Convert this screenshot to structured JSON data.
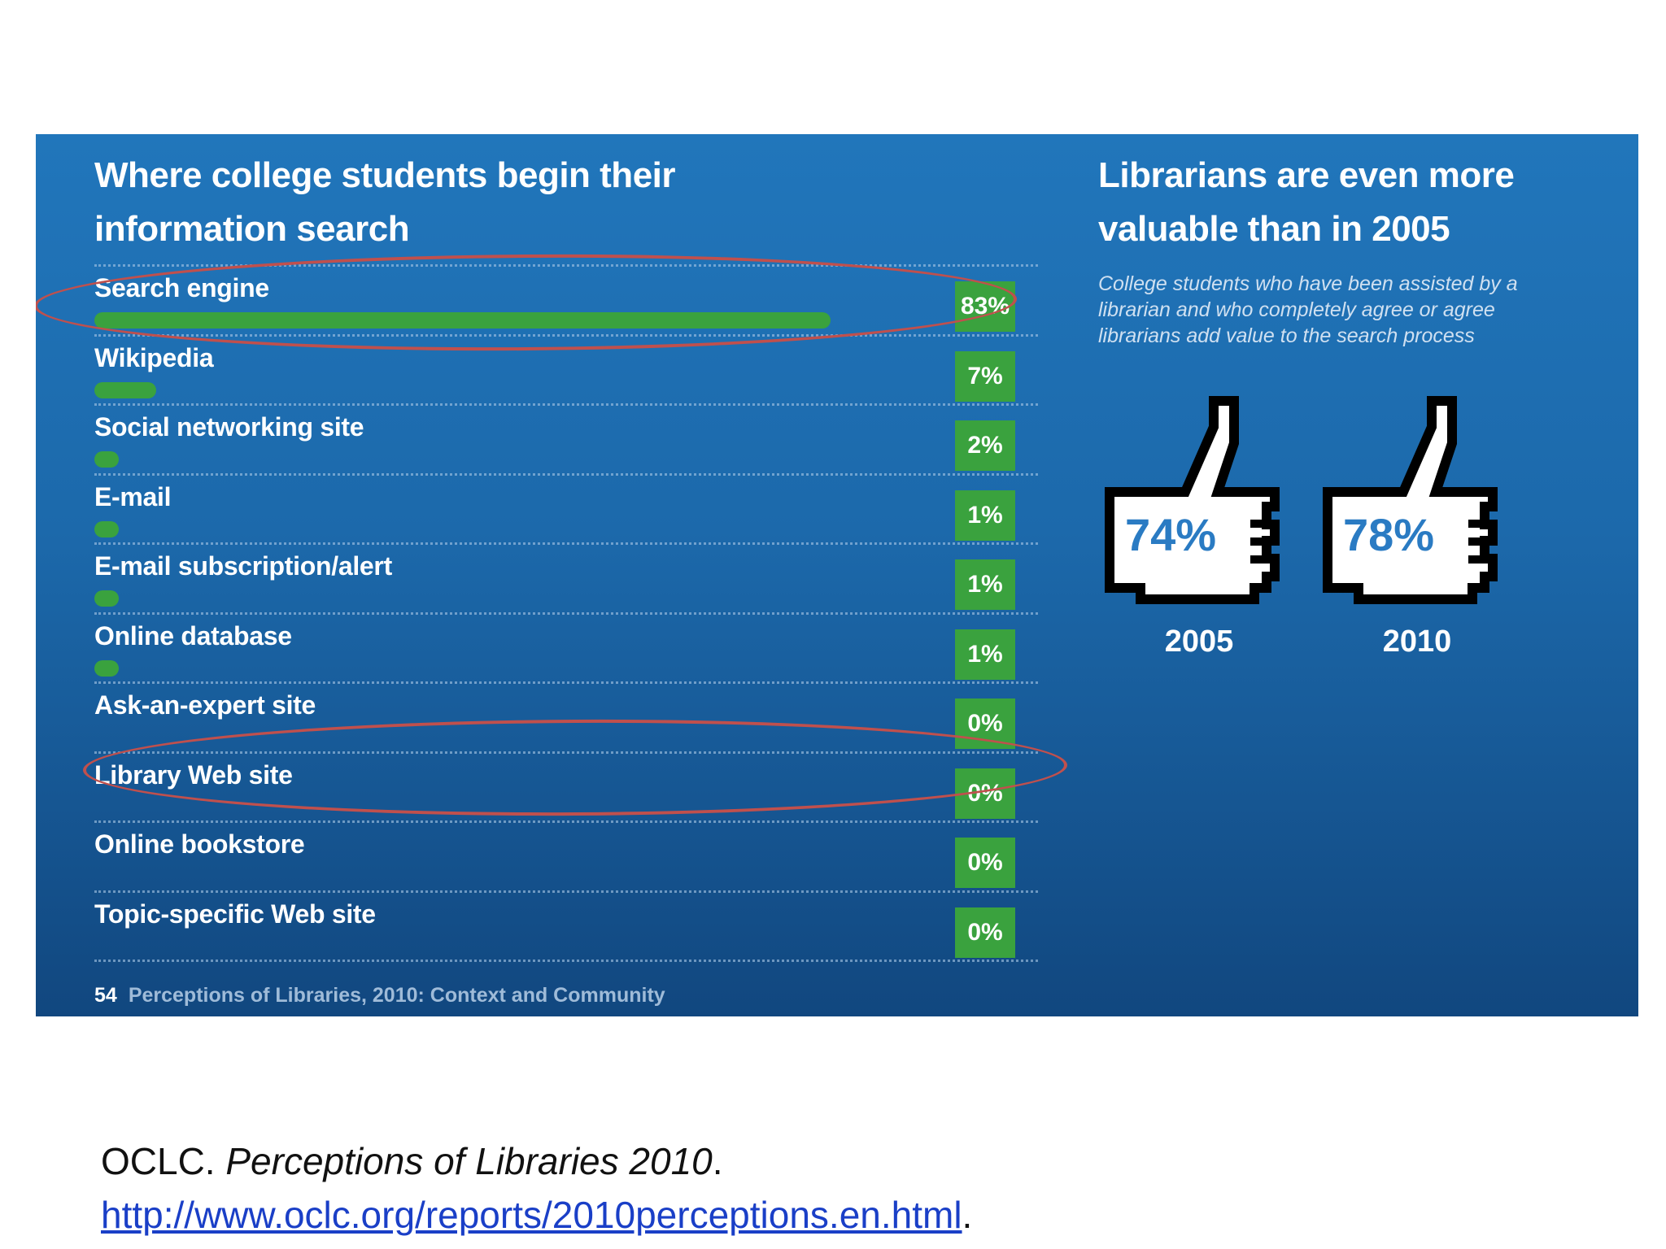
{
  "left_title_line1": "Where college students begin their",
  "left_title_line2": "information search",
  "right_title_line1": "Librarians are even more",
  "right_title_line2": "valuable than in 2005",
  "subtitle_line1": "College students who have been assisted by a",
  "subtitle_line2": "librarian and who completely agree or agree",
  "subtitle_line3": "librarians add value to the search process",
  "footer_page": "54",
  "footer_text": "Perceptions of Libraries, 2010: Context and Community",
  "citation": {
    "author": "OCLC.",
    "title": "Perceptions of Libraries 2010",
    "after_title": ".",
    "url": "http://www.oclc.org/reports/2010perceptions.en.html",
    "after_url": "."
  },
  "colors": {
    "panel": "#1c69ab",
    "bar": "#3aa23e",
    "highlight_ring": "#c0504d",
    "thumb_value": "#2a7bc3"
  },
  "chart_data": [
    {
      "type": "bar",
      "orientation": "horizontal",
      "title": "Where college students begin their information search",
      "categories": [
        "Search engine",
        "Wikipedia",
        "Social networking site",
        "E-mail",
        "E-mail subscription/alert",
        "Online database",
        "Ask-an-expert site",
        "Library Web site",
        "Online bookstore",
        "Topic-specific Web site"
      ],
      "values": [
        83,
        7,
        2,
        1,
        1,
        1,
        0,
        0,
        0,
        0
      ],
      "value_labels": [
        "83%",
        "7%",
        "2%",
        "1%",
        "1%",
        "1%",
        "0%",
        "0%",
        "0%",
        "0%"
      ],
      "unit": "%",
      "xlim": [
        0,
        100
      ],
      "highlighted": [
        "Search engine",
        "Library Web site"
      ]
    },
    {
      "type": "pictogram",
      "title": "Librarians are even more valuable than in 2005",
      "categories": [
        "2005",
        "2010"
      ],
      "values": [
        74,
        78
      ],
      "value_labels": [
        "74%",
        "78%"
      ],
      "icon": "thumbs-up-icon"
    }
  ]
}
